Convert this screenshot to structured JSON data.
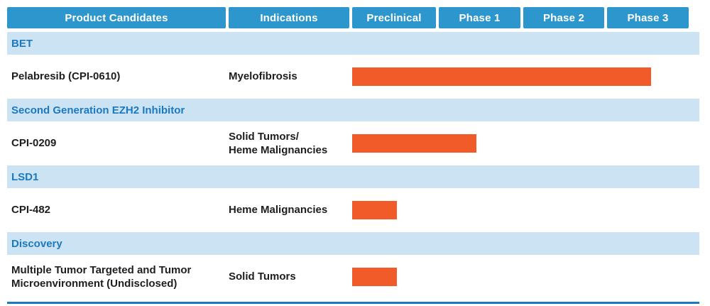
{
  "header": {
    "columns": [
      {
        "label": "Product Candidates"
      },
      {
        "label": "Indications"
      },
      {
        "label": "Preclinical"
      },
      {
        "label": "Phase 1"
      },
      {
        "label": "Phase 2"
      },
      {
        "label": "Phase 3"
      }
    ]
  },
  "sections": [
    {
      "label": "BET",
      "rows": [
        {
          "candidate": "Pelabresib (CPI-0610)",
          "indication": "Myelofibrosis"
        }
      ]
    },
    {
      "label": "Second Generation EZH2 Inhibitor",
      "rows": [
        {
          "candidate": "CPI-0209",
          "indication": "Solid Tumors/\nHeme Malignancies"
        }
      ]
    },
    {
      "label": "LSD1",
      "rows": [
        {
          "candidate": "CPI-482",
          "indication": "Heme Malignancies"
        }
      ]
    },
    {
      "label": "Discovery",
      "rows": [
        {
          "candidate": "Multiple Tumor Targeted and Tumor\nMicroenvironment (Undisclosed)",
          "indication": "Solid Tumors"
        }
      ]
    }
  ],
  "colors": {
    "header_blue": "#2D96CC",
    "section_bg": "#CBE3F3",
    "section_text": "#1B7ABF",
    "bar_orange": "#F15A29",
    "body_text": "#1E1E1E",
    "rule_blue": "#1B7ABF",
    "background": "#FFFFFF"
  },
  "chart_data": {
    "type": "bar",
    "orientation": "horizontal",
    "phase_axis": [
      "Preclinical",
      "Phase 1",
      "Phase 2",
      "Phase 3"
    ],
    "phase_span": 4,
    "bar_color": "#F15A29",
    "bars": [
      {
        "group": "BET",
        "candidate": "Pelabresib (CPI-0610)",
        "indication": "Myelofibrosis",
        "start_phase": 0,
        "end_phase": 3.55
      },
      {
        "group": "Second Generation EZH2 Inhibitor",
        "candidate": "CPI-0209",
        "indication": "Solid Tumors/ Heme Malignancies",
        "start_phase": 0,
        "end_phase": 1.48
      },
      {
        "group": "LSD1",
        "candidate": "CPI-482",
        "indication": "Heme Malignancies",
        "start_phase": 0,
        "end_phase": 0.53
      },
      {
        "group": "Discovery",
        "candidate": "Multiple Tumor Targeted and Tumor Microenvironment (Undisclosed)",
        "indication": "Solid Tumors",
        "start_phase": 0,
        "end_phase": 0.53
      }
    ]
  }
}
